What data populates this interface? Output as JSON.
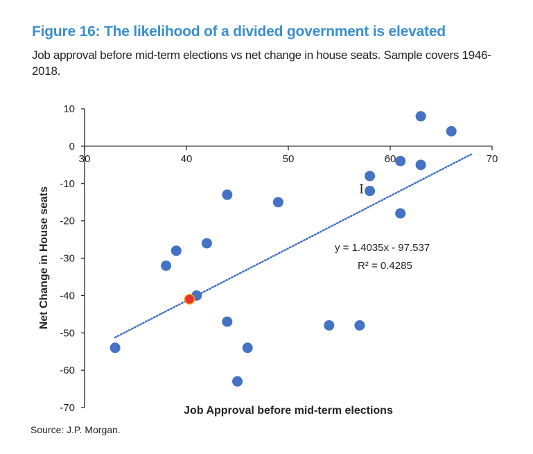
{
  "figure": {
    "title": "Figure 16: The likelihood of a divided government is elevated",
    "subtitle": "Job approval before mid-term elections vs net change in house seats. Sample covers 1946-2018.",
    "source": "Source: J.P. Morgan."
  },
  "chart_data": {
    "type": "scatter",
    "xlabel": "Job Approval before mid-term elections",
    "ylabel": "Net Change in House seats",
    "xlim": [
      30,
      70
    ],
    "ylim": [
      -70,
      10
    ],
    "xticks": [
      30,
      40,
      50,
      60,
      70
    ],
    "yticks": [
      10,
      0,
      -10,
      -20,
      -30,
      -40,
      -50,
      -60,
      -70
    ],
    "grid": false,
    "legend": "none",
    "points": [
      {
        "x": 33,
        "y": -54
      },
      {
        "x": 38,
        "y": -32
      },
      {
        "x": 39,
        "y": -28
      },
      {
        "x": 41,
        "y": -40
      },
      {
        "x": 42,
        "y": -26
      },
      {
        "x": 44,
        "y": -13
      },
      {
        "x": 44,
        "y": -47
      },
      {
        "x": 45,
        "y": -63
      },
      {
        "x": 46,
        "y": -54
      },
      {
        "x": 49,
        "y": -15
      },
      {
        "x": 54,
        "y": -48
      },
      {
        "x": 57,
        "y": -48
      },
      {
        "x": 58,
        "y": -8
      },
      {
        "x": 58,
        "y": -12
      },
      {
        "x": 61,
        "y": -4
      },
      {
        "x": 61,
        "y": -18
      },
      {
        "x": 63,
        "y": 8
      },
      {
        "x": 63,
        "y": -5
      },
      {
        "x": 66,
        "y": 4
      }
    ],
    "highlight_points": [
      {
        "x": 40.3,
        "y": -41
      }
    ],
    "trendline": {
      "slope": 1.4035,
      "intercept": -97.537,
      "x_range": [
        33,
        68
      ],
      "equation_label": "y = 1.4035x - 97.537",
      "r2_label": "R² = 0.4285"
    },
    "colors": {
      "points": "#4472c4",
      "highlight": "#e8322a",
      "highlight_outline": "#f7a11a",
      "trendline": "#4472c4",
      "title": "#3a8fd0"
    }
  }
}
